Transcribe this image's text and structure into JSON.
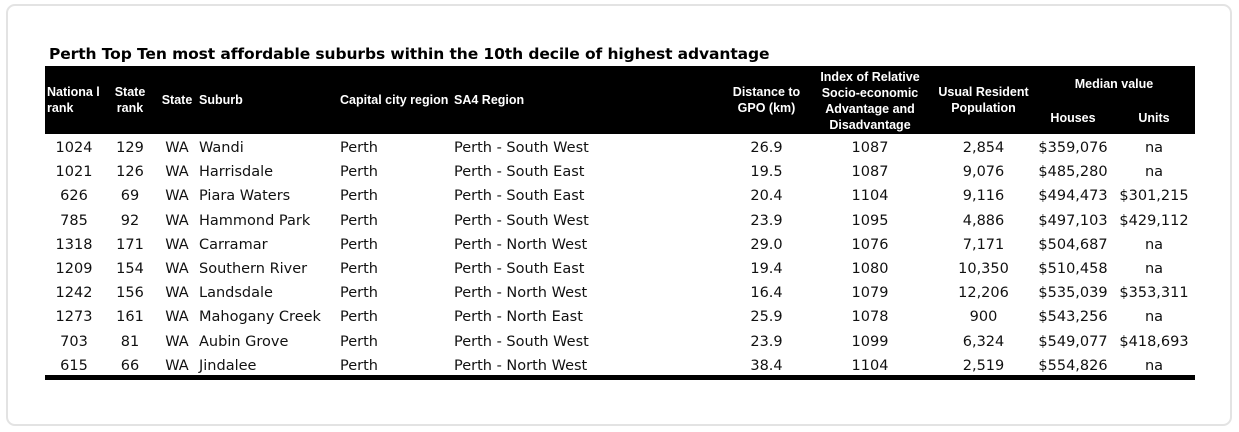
{
  "title": "Perth Top Ten most affordable suburbs within the 10th decile of highest advantage",
  "headers": {
    "national_rank": "Nationa l rank",
    "state_rank": "State rank",
    "state": "State",
    "suburb": "Suburb",
    "capital_city_region": "Capital city region",
    "sa4_region": "SA4 Region",
    "distance": "Distance to GPO (km)",
    "index": "Index of Relative Socio-economic Advantage and Disadvantage",
    "population": "Usual Resident Population",
    "median_value": "Median value",
    "houses": "Houses",
    "units": "Units"
  },
  "rows": [
    {
      "national_rank": "1024",
      "state_rank": "129",
      "state": "WA",
      "suburb": "Wandi",
      "city": "Perth",
      "sa4": "Perth - South West",
      "distance": "26.9",
      "index": "1087",
      "population": "2,854",
      "houses": "$359,076",
      "units": "na"
    },
    {
      "national_rank": "1021",
      "state_rank": "126",
      "state": "WA",
      "suburb": "Harrisdale",
      "city": "Perth",
      "sa4": "Perth - South East",
      "distance": "19.5",
      "index": "1087",
      "population": "9,076",
      "houses": "$485,280",
      "units": "na"
    },
    {
      "national_rank": "626",
      "state_rank": "69",
      "state": "WA",
      "suburb": "Piara Waters",
      "city": "Perth",
      "sa4": "Perth - South East",
      "distance": "20.4",
      "index": "1104",
      "population": "9,116",
      "houses": "$494,473",
      "units": "$301,215"
    },
    {
      "national_rank": "785",
      "state_rank": "92",
      "state": "WA",
      "suburb": "Hammond Park",
      "city": "Perth",
      "sa4": "Perth - South West",
      "distance": "23.9",
      "index": "1095",
      "population": "4,886",
      "houses": "$497,103",
      "units": "$429,112"
    },
    {
      "national_rank": "1318",
      "state_rank": "171",
      "state": "WA",
      "suburb": "Carramar",
      "city": "Perth",
      "sa4": "Perth - North West",
      "distance": "29.0",
      "index": "1076",
      "population": "7,171",
      "houses": "$504,687",
      "units": "na"
    },
    {
      "national_rank": "1209",
      "state_rank": "154",
      "state": "WA",
      "suburb": "Southern River",
      "city": "Perth",
      "sa4": "Perth - South East",
      "distance": "19.4",
      "index": "1080",
      "population": "10,350",
      "houses": "$510,458",
      "units": "na"
    },
    {
      "national_rank": "1242",
      "state_rank": "156",
      "state": "WA",
      "suburb": "Landsdale",
      "city": "Perth",
      "sa4": "Perth - North West",
      "distance": "16.4",
      "index": "1079",
      "population": "12,206",
      "houses": "$535,039",
      "units": "$353,311"
    },
    {
      "national_rank": "1273",
      "state_rank": "161",
      "state": "WA",
      "suburb": "Mahogany Creek",
      "city": "Perth",
      "sa4": "Perth - North East",
      "distance": "25.9",
      "index": "1078",
      "population": "900",
      "houses": "$543,256",
      "units": "na"
    },
    {
      "national_rank": "703",
      "state_rank": "81",
      "state": "WA",
      "suburb": "Aubin Grove",
      "city": "Perth",
      "sa4": "Perth - South West",
      "distance": "23.9",
      "index": "1099",
      "population": "6,324",
      "houses": "$549,077",
      "units": "$418,693"
    },
    {
      "national_rank": "615",
      "state_rank": "66",
      "state": "WA",
      "suburb": "Jindalee",
      "city": "Perth",
      "sa4": "Perth - North West",
      "distance": "38.4",
      "index": "1104",
      "population": "2,519",
      "houses": "$554,826",
      "units": "na"
    }
  ]
}
